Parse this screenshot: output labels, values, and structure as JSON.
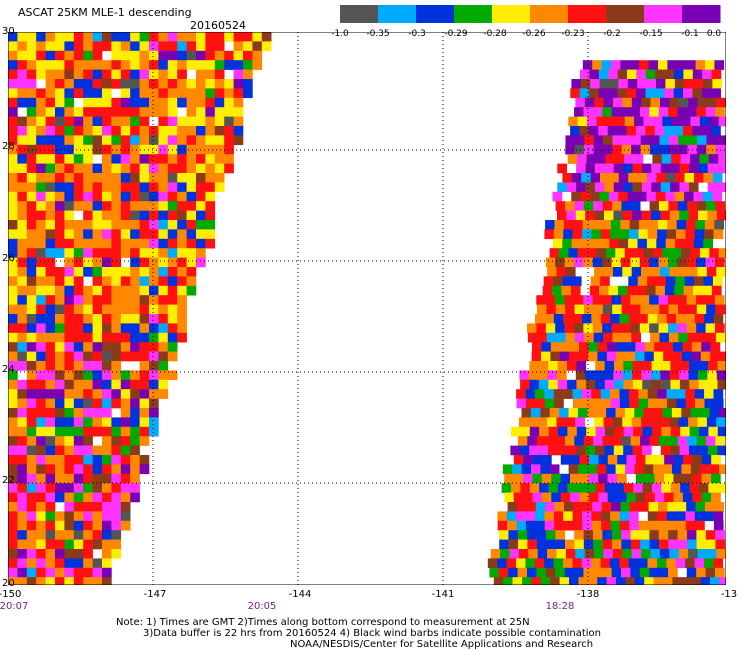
{
  "header": {
    "title": "ASCAT 25KM MLE-1 descending",
    "date": "20160524"
  },
  "colorbar": {
    "colors": [
      "#555555",
      "#00aaff",
      "#0033dd",
      "#00aa00",
      "#ffee00",
      "#ff8800",
      "#ff1111",
      "#8b3a1a",
      "#ff33ff",
      "#7a00b4"
    ],
    "tick_labels": [
      "-1.0",
      "-0.35",
      "-0.3",
      "-0.29",
      "-0.28",
      "-0.26",
      "-0.23",
      "-0.2",
      "-0.15",
      "-0.1",
      "0.0"
    ]
  },
  "map": {
    "y_labels": [
      "30",
      "28",
      "26",
      "24",
      "22",
      "20"
    ],
    "x_labels": [
      "-150",
      "-147",
      "-144",
      "-141",
      "-138",
      "-13"
    ],
    "time_labels": [
      "20:07",
      "20:05",
      "18:28"
    ],
    "grid": true,
    "lon_range": [
      -150,
      -135
    ],
    "lat_range": [
      20,
      30
    ]
  },
  "notes": [
    "Note: 1) Times are GMT 2)Times along bottom correspond to measurement at 25N",
    "3)Data buffer is 22 hrs from 20160524 4) Black wind barbs indicate possible contamination",
    "NOAA/NESDIS/Center for Satellite Applications and Research"
  ]
}
